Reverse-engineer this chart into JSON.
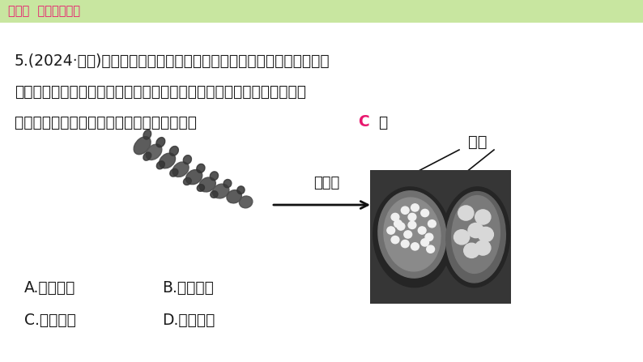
{
  "bg_color": "#ffffff",
  "header_bg": "#c8e6a0",
  "header_text": "第二编  主题分类突破",
  "header_text_color": "#e8176e",
  "header_font_size": 10.5,
  "main_text_line1": "5.(2024·泰安)如图是山椒藻，学名叫槐叶萍，是一种漂浮在水面上的水",
  "main_text_line2": "生植物。它的茎细长，叶舒展于水面上，具有叶脉，叶脉中有输导组织，",
  "main_text_line3_before": "在沉水叶的基部着生孢子果。这种植物属于（  ",
  "main_text_line3_c": "C",
  "main_text_line3_after": "  ）",
  "main_font_size": 13.5,
  "answer_color": "#e8176e",
  "label_spore_fruit": "孢子果",
  "label_spore": "孢子",
  "arrow_label_fontsize": 13,
  "option_A": "A.藻类植物",
  "option_B": "B.苔藓植物",
  "option_C": "C.蕨类植物",
  "option_D": "D.种子植物",
  "option_font_size": 13.5,
  "text_color": "#1a1a1a"
}
